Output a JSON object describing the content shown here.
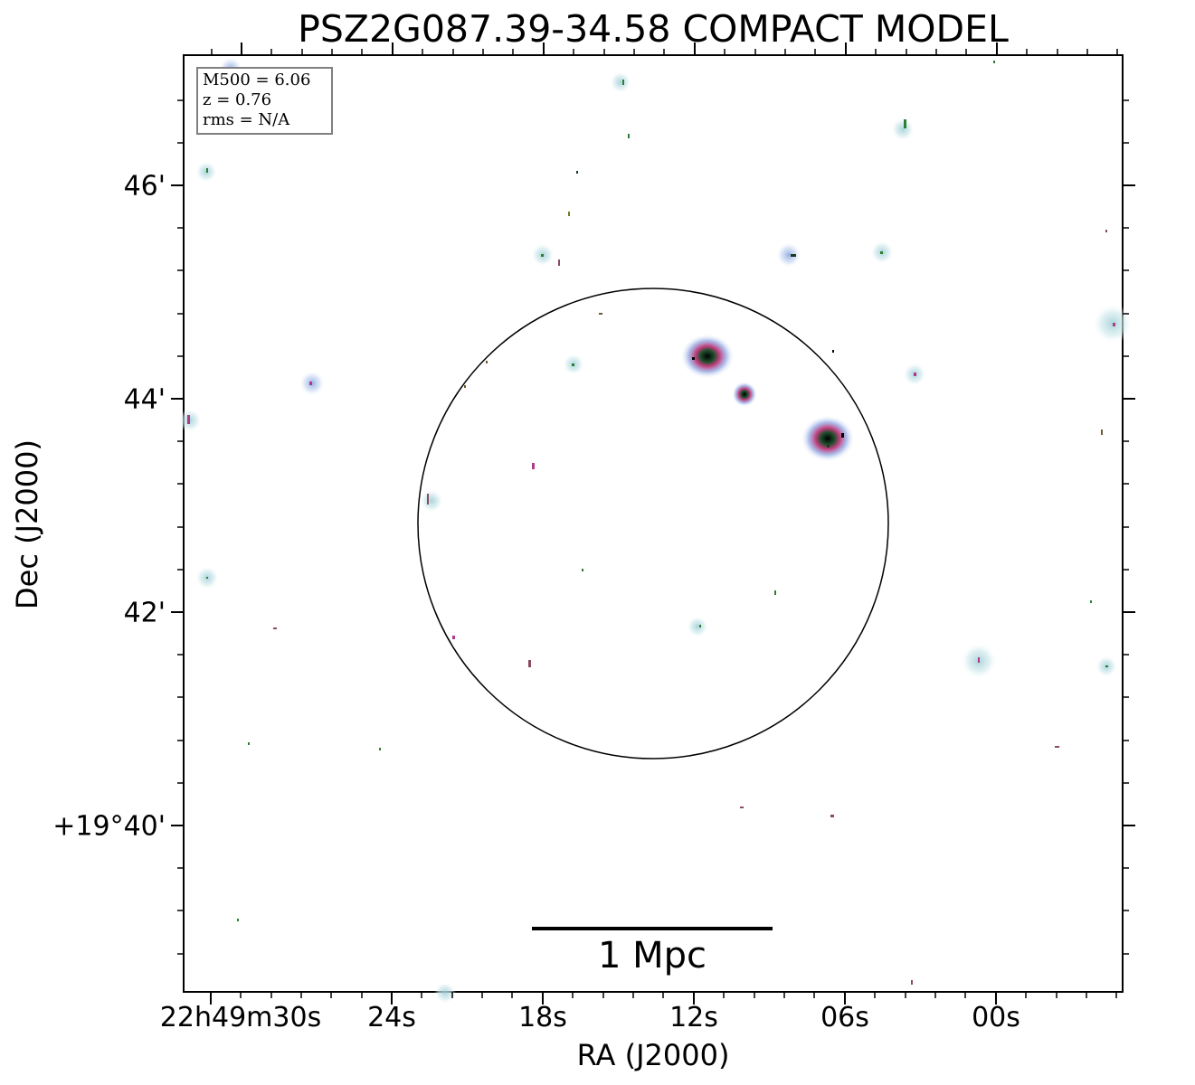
{
  "title": "PSZ2G087.39-34.58 COMPACT MODEL",
  "info_box": {
    "line1": "M500 = 6.06",
    "line2": "z = 0.76",
    "line3": "rms = N/A"
  },
  "axes": {
    "xlabel": "RA (J2000)",
    "ylabel": "Dec (J2000)",
    "xticks": [
      "22h49m30s",
      "24s",
      "18s",
      "12s",
      "06s",
      "00s"
    ],
    "yticks": [
      "46'",
      "44'",
      "42'",
      "+19°40'"
    ]
  },
  "scalebar": {
    "label": "1 Mpc"
  },
  "colors": {
    "source_halo": "#d7ecef",
    "bright_core": "#000000",
    "magenta": "#b03a8a",
    "green": "#2e7d32"
  }
}
